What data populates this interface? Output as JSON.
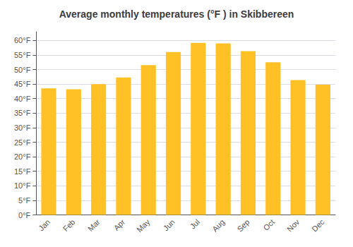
{
  "chart_data": {
    "type": "bar",
    "title": "Average monthly temperatures (°F ) in Skibbereen",
    "categories": [
      "Jan",
      "Feb",
      "Mar",
      "Apr",
      "May",
      "Jun",
      "Jul",
      "Aug",
      "Sep",
      "Oct",
      "Nov",
      "Dec"
    ],
    "values": [
      43.5,
      43.2,
      45.0,
      47.3,
      51.5,
      56.0,
      59.2,
      59.0,
      56.3,
      52.5,
      46.4,
      44.8
    ],
    "color": "#FFC125",
    "ylim": [
      0,
      63
    ],
    "yticks": [
      {
        "value": 0,
        "label": "0°F"
      },
      {
        "value": 5,
        "label": "5°F"
      },
      {
        "value": 10,
        "label": "10°F"
      },
      {
        "value": 15,
        "label": "15°F"
      },
      {
        "value": 20,
        "label": "20°F"
      },
      {
        "value": 25,
        "label": "25°F"
      },
      {
        "value": 30,
        "label": "30°F"
      },
      {
        "value": 35,
        "label": "35°F"
      },
      {
        "value": 40,
        "label": "40°F"
      },
      {
        "value": 45,
        "label": "45°F"
      },
      {
        "value": 50,
        "label": "50°F"
      },
      {
        "value": 55,
        "label": "55°F"
      },
      {
        "value": 60,
        "label": "60°F"
      }
    ],
    "grid": true
  }
}
